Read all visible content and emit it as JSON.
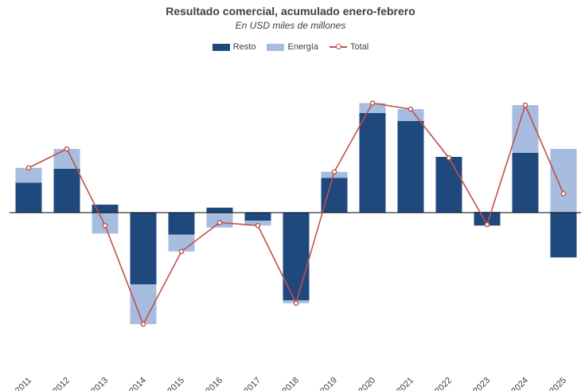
{
  "chart_data": {
    "type": "bar",
    "stacked": true,
    "title": "Resultado comercial, acumulado enero-febrero",
    "subtitle": "En USD miles de millones",
    "categories": [
      "2011",
      "2012",
      "2013",
      "2014",
      "2015",
      "2016",
      "2017",
      "2018",
      "2019",
      "2020",
      "2021",
      "2022",
      "2023",
      "2024",
      "2025"
    ],
    "series": [
      {
        "name": "Resto",
        "kind": "bar",
        "color": "#1f497d",
        "values": [
          1.5,
          2.2,
          0.4,
          -3.6,
          -1.1,
          0.25,
          -0.4,
          -4.4,
          1.75,
          5.0,
          4.6,
          2.8,
          -0.65,
          3.0,
          -2.25
        ]
      },
      {
        "name": "Energía",
        "kind": "bar",
        "color": "#a6bddf",
        "values": [
          0.75,
          1.0,
          -1.05,
          -2.0,
          -0.85,
          -0.75,
          -0.25,
          -0.15,
          0.3,
          0.5,
          0.6,
          0.0,
          0.05,
          2.4,
          3.2
        ]
      },
      {
        "name": "Total",
        "kind": "line",
        "color": "#c0504d",
        "values": [
          2.25,
          3.2,
          -0.65,
          -5.6,
          -1.95,
          -0.5,
          -0.65,
          -4.55,
          2.05,
          5.5,
          5.2,
          2.75,
          -0.6,
          5.4,
          0.95
        ]
      }
    ],
    "ylim": [
      -7.0,
      6.5
    ],
    "xlabel": "",
    "ylabel": "",
    "grid": false,
    "legend": "top-center"
  }
}
